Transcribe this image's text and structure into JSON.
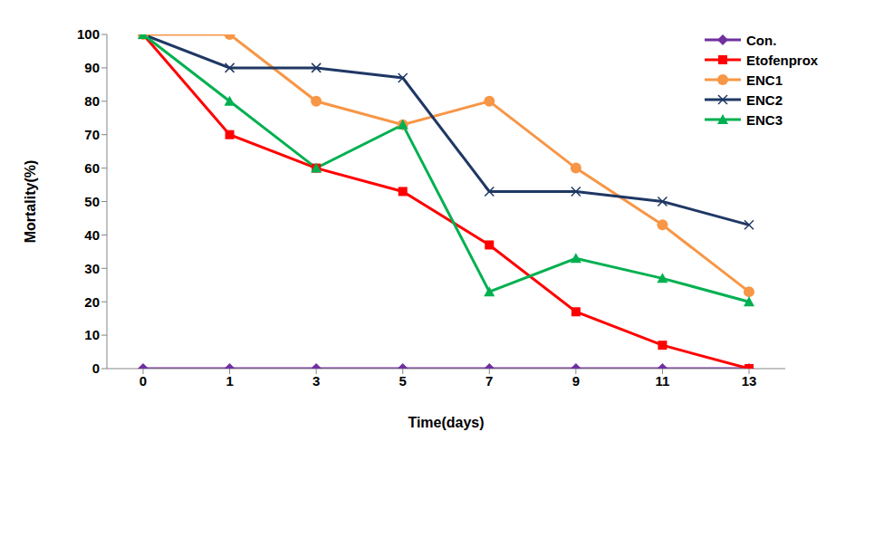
{
  "chart_data": {
    "type": "line",
    "x_label": "Time(days)",
    "y_label": "Mortality(%)",
    "categories": [
      "0",
      "1",
      "3",
      "5",
      "7",
      "9",
      "11",
      "13"
    ],
    "ylim": [
      0,
      100
    ],
    "yticks": [
      0,
      10,
      20,
      30,
      40,
      50,
      60,
      70,
      80,
      90,
      100
    ],
    "grid": false,
    "legend": "top-right",
    "series": [
      {
        "name": "Con.",
        "color": "#7030a0",
        "marker": "diamond",
        "values": [
          0,
          0,
          0,
          0,
          0,
          0,
          0,
          0
        ]
      },
      {
        "name": "Etofenprox",
        "color": "#ff0000",
        "marker": "square",
        "values": [
          100,
          70,
          60,
          53,
          37,
          17,
          7,
          0
        ]
      },
      {
        "name": "ENC1",
        "color": "#f79646",
        "marker": "circle",
        "values": [
          100,
          100,
          80,
          73,
          80,
          60,
          43,
          23
        ]
      },
      {
        "name": "ENC2",
        "color": "#1f3864",
        "marker": "x",
        "values": [
          100,
          90,
          90,
          87,
          53,
          53,
          50,
          43
        ]
      },
      {
        "name": "ENC3",
        "color": "#00b050",
        "marker": "triangle",
        "values": [
          100,
          80,
          60,
          73,
          23,
          33,
          27,
          20
        ]
      }
    ]
  }
}
